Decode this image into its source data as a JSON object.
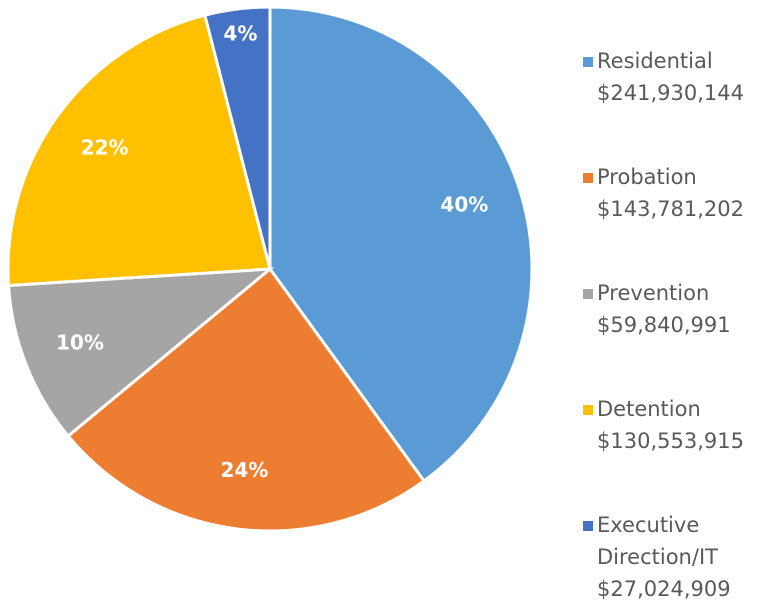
{
  "chart_data": {
    "type": "pie",
    "categories": [
      "Residential",
      "Probation",
      "Prevention",
      "Detention",
      "Executive Direction/IT"
    ],
    "values": [
      40,
      24,
      10,
      22,
      4
    ],
    "value_labels": [
      "40%",
      "24%",
      "10%",
      "22%",
      "4%"
    ],
    "amount_labels": [
      "$241,930,144",
      "$143,781,202",
      "$59,840,991",
      "$130,553,915",
      "$27,024,909"
    ],
    "colors": [
      "#5b9bd5",
      "#ed7d31",
      "#a5a5a5",
      "#ffc000",
      "#4472c4"
    ],
    "legend": "right"
  }
}
